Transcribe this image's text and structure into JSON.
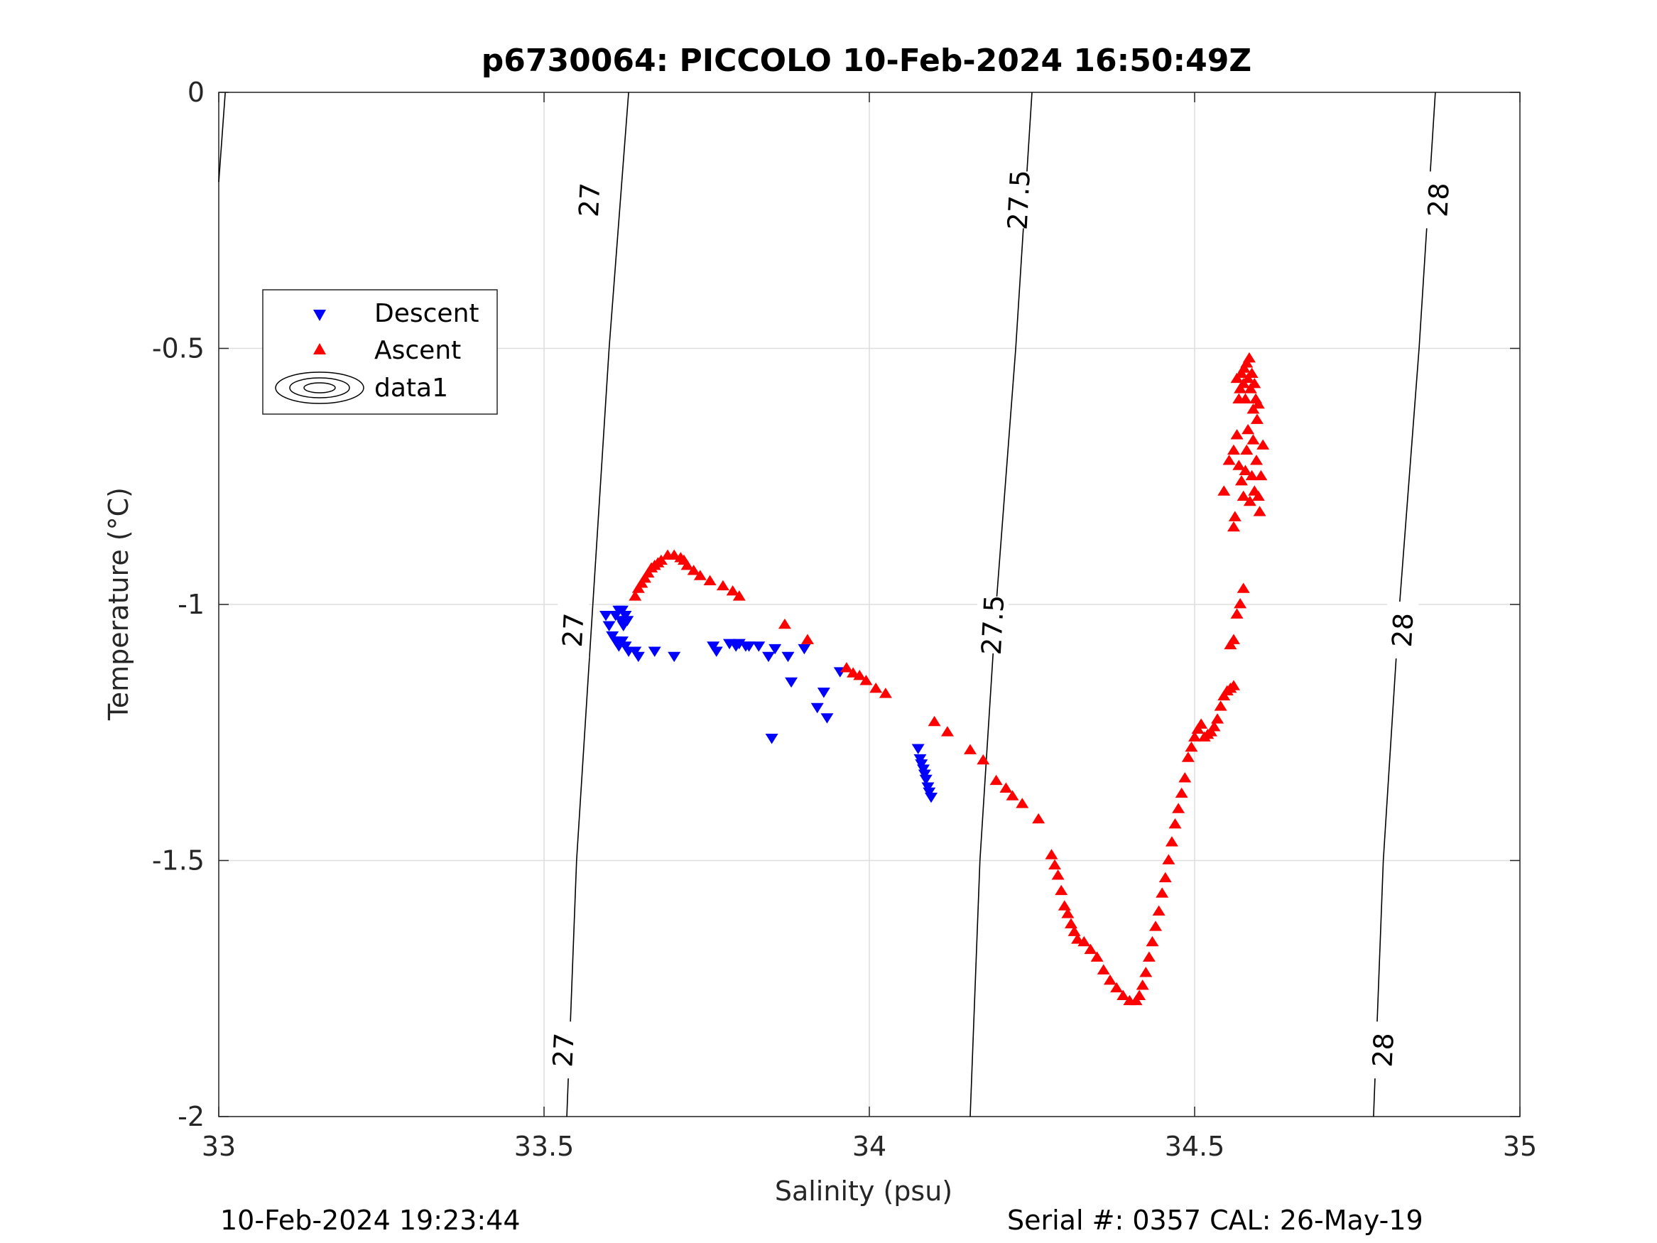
{
  "chart_data": {
    "type": "scatter",
    "title": "p6730064: PICCOLO 10-Feb-2024 16:50:49Z",
    "xlabel": "Salinity (psu)",
    "ylabel": "Temperature (°C)",
    "xlim": [
      33,
      35
    ],
    "ylim": [
      -2,
      0
    ],
    "x_ticks": [
      33,
      33.5,
      34,
      34.5,
      35
    ],
    "y_ticks": [
      0,
      -0.5,
      -1,
      -1.5,
      -2
    ],
    "x_tick_labels": [
      "33",
      "33.5",
      "34",
      "34.5",
      "35"
    ],
    "y_tick_labels": [
      "0",
      "-0.5",
      "-1",
      "-1.5",
      "-2"
    ],
    "grid": true,
    "legend_position": "upper-left",
    "series": [
      {
        "name": "Descent",
        "marker": "triangle-down",
        "color": "#0000ff",
        "points": [
          [
            33.595,
            -1.02
          ],
          [
            33.6,
            -1.04
          ],
          [
            33.605,
            -1.06
          ],
          [
            33.61,
            -1.02
          ],
          [
            33.615,
            -1.01
          ],
          [
            33.618,
            -1.03
          ],
          [
            33.62,
            -1.01
          ],
          [
            33.622,
            -1.04
          ],
          [
            33.625,
            -1.02
          ],
          [
            33.628,
            -1.03
          ],
          [
            33.61,
            -1.07
          ],
          [
            33.615,
            -1.08
          ],
          [
            33.62,
            -1.07
          ],
          [
            33.625,
            -1.08
          ],
          [
            33.63,
            -1.09
          ],
          [
            33.64,
            -1.09
          ],
          [
            33.645,
            -1.1
          ],
          [
            33.67,
            -1.09
          ],
          [
            33.7,
            -1.1
          ],
          [
            33.76,
            -1.08
          ],
          [
            33.765,
            -1.09
          ],
          [
            33.785,
            -1.075
          ],
          [
            33.795,
            -1.08
          ],
          [
            33.8,
            -1.075
          ],
          [
            33.81,
            -1.08
          ],
          [
            33.815,
            -1.08
          ],
          [
            33.83,
            -1.08
          ],
          [
            33.845,
            -1.1
          ],
          [
            33.855,
            -1.085
          ],
          [
            33.875,
            -1.1
          ],
          [
            33.88,
            -1.15
          ],
          [
            33.9,
            -1.085
          ],
          [
            33.92,
            -1.2
          ],
          [
            33.93,
            -1.17
          ],
          [
            33.935,
            -1.22
          ],
          [
            33.955,
            -1.13
          ],
          [
            33.85,
            -1.26
          ],
          [
            34.075,
            -1.28
          ],
          [
            34.078,
            -1.3
          ],
          [
            34.08,
            -1.31
          ],
          [
            34.083,
            -1.32
          ],
          [
            34.085,
            -1.33
          ],
          [
            34.087,
            -1.34
          ],
          [
            34.09,
            -1.355
          ],
          [
            34.092,
            -1.365
          ],
          [
            34.095,
            -1.375
          ]
        ]
      },
      {
        "name": "Ascent",
        "marker": "triangle-up",
        "color": "#ff0000",
        "points": [
          [
            33.64,
            -0.985
          ],
          [
            33.645,
            -0.97
          ],
          [
            33.65,
            -0.96
          ],
          [
            33.655,
            -0.95
          ],
          [
            33.66,
            -0.94
          ],
          [
            33.665,
            -0.93
          ],
          [
            33.67,
            -0.925
          ],
          [
            33.675,
            -0.92
          ],
          [
            33.68,
            -0.915
          ],
          [
            33.69,
            -0.905
          ],
          [
            33.7,
            -0.905
          ],
          [
            33.71,
            -0.91
          ],
          [
            33.715,
            -0.915
          ],
          [
            33.72,
            -0.925
          ],
          [
            33.73,
            -0.935
          ],
          [
            33.74,
            -0.945
          ],
          [
            33.755,
            -0.955
          ],
          [
            33.775,
            -0.965
          ],
          [
            33.79,
            -0.975
          ],
          [
            33.8,
            -0.985
          ],
          [
            33.87,
            -1.04
          ],
          [
            33.905,
            -1.07
          ],
          [
            33.965,
            -1.125
          ],
          [
            33.975,
            -1.135
          ],
          [
            33.985,
            -1.14
          ],
          [
            33.995,
            -1.15
          ],
          [
            34.01,
            -1.165
          ],
          [
            34.025,
            -1.175
          ],
          [
            34.1,
            -1.23
          ],
          [
            34.12,
            -1.25
          ],
          [
            34.155,
            -1.285
          ],
          [
            34.175,
            -1.305
          ],
          [
            34.195,
            -1.345
          ],
          [
            34.21,
            -1.36
          ],
          [
            34.22,
            -1.375
          ],
          [
            34.235,
            -1.39
          ],
          [
            34.26,
            -1.42
          ],
          [
            34.28,
            -1.49
          ],
          [
            34.285,
            -1.51
          ],
          [
            34.29,
            -1.53
          ],
          [
            34.295,
            -1.56
          ],
          [
            34.3,
            -1.59
          ],
          [
            34.305,
            -1.605
          ],
          [
            34.31,
            -1.625
          ],
          [
            34.315,
            -1.64
          ],
          [
            34.32,
            -1.655
          ],
          [
            34.33,
            -1.66
          ],
          [
            34.34,
            -1.675
          ],
          [
            34.35,
            -1.69
          ],
          [
            34.36,
            -1.715
          ],
          [
            34.37,
            -1.735
          ],
          [
            34.38,
            -1.75
          ],
          [
            34.39,
            -1.765
          ],
          [
            34.4,
            -1.775
          ],
          [
            34.41,
            -1.775
          ],
          [
            34.415,
            -1.765
          ],
          [
            34.42,
            -1.745
          ],
          [
            34.425,
            -1.72
          ],
          [
            34.43,
            -1.69
          ],
          [
            34.435,
            -1.66
          ],
          [
            34.44,
            -1.63
          ],
          [
            34.445,
            -1.6
          ],
          [
            34.45,
            -1.565
          ],
          [
            34.455,
            -1.535
          ],
          [
            34.46,
            -1.5
          ],
          [
            34.465,
            -1.465
          ],
          [
            34.47,
            -1.43
          ],
          [
            34.475,
            -1.4
          ],
          [
            34.48,
            -1.37
          ],
          [
            34.485,
            -1.34
          ],
          [
            34.49,
            -1.3
          ],
          [
            34.495,
            -1.28
          ],
          [
            34.5,
            -1.26
          ],
          [
            34.505,
            -1.245
          ],
          [
            34.51,
            -1.235
          ],
          [
            34.515,
            -1.26
          ],
          [
            34.52,
            -1.255
          ],
          [
            34.525,
            -1.25
          ],
          [
            34.53,
            -1.24
          ],
          [
            34.535,
            -1.225
          ],
          [
            34.54,
            -1.2
          ],
          [
            34.545,
            -1.18
          ],
          [
            34.55,
            -1.17
          ],
          [
            34.555,
            -1.165
          ],
          [
            34.56,
            -1.16
          ],
          [
            34.555,
            -1.08
          ],
          [
            34.56,
            -1.07
          ],
          [
            34.565,
            -1.02
          ],
          [
            34.57,
            -1.0
          ],
          [
            34.575,
            -0.97
          ],
          [
            34.56,
            -0.85
          ],
          [
            34.562,
            -0.83
          ],
          [
            34.545,
            -0.78
          ],
          [
            34.553,
            -0.72
          ],
          [
            34.56,
            -0.7
          ],
          [
            34.565,
            -0.67
          ],
          [
            34.568,
            -0.73
          ],
          [
            34.572,
            -0.76
          ],
          [
            34.575,
            -0.79
          ],
          [
            34.578,
            -0.74
          ],
          [
            34.58,
            -0.7
          ],
          [
            34.582,
            -0.66
          ],
          [
            34.585,
            -0.8
          ],
          [
            34.588,
            -0.75
          ],
          [
            34.59,
            -0.68
          ],
          [
            34.592,
            -0.78
          ],
          [
            34.595,
            -0.72
          ],
          [
            34.598,
            -0.79
          ],
          [
            34.6,
            -0.82
          ],
          [
            34.602,
            -0.75
          ],
          [
            34.605,
            -0.69
          ],
          [
            34.565,
            -0.56
          ],
          [
            34.568,
            -0.6
          ],
          [
            34.57,
            -0.58
          ],
          [
            34.572,
            -0.55
          ],
          [
            34.575,
            -0.57
          ],
          [
            34.576,
            -0.54
          ],
          [
            34.578,
            -0.6
          ],
          [
            34.58,
            -0.53
          ],
          [
            34.582,
            -0.56
          ],
          [
            34.584,
            -0.52
          ],
          [
            34.586,
            -0.58
          ],
          [
            34.588,
            -0.55
          ],
          [
            34.59,
            -0.62
          ],
          [
            34.592,
            -0.57
          ],
          [
            34.594,
            -0.6
          ],
          [
            34.596,
            -0.64
          ],
          [
            34.598,
            -0.61
          ]
        ]
      },
      {
        "name": "data1",
        "kind": "sigma-theta contours",
        "color": "#000000",
        "contours": [
          {
            "level": 27.0,
            "label": "27",
            "line": [
              [
                33.535,
                -2
              ],
              [
                33.55,
                -1.5
              ],
              [
                33.575,
                -1.0
              ],
              [
                33.6,
                -0.5
              ],
              [
                33.63,
                0
              ]
            ]
          },
          {
            "level": 27.5,
            "label": "27.5",
            "line": [
              [
                34.155,
                -2
              ],
              [
                34.17,
                -1.5
              ],
              [
                34.195,
                -1.0
              ],
              [
                34.225,
                -0.5
              ],
              [
                34.25,
                0
              ]
            ]
          },
          {
            "level": 28.0,
            "label": "28",
            "line": [
              [
                34.775,
                -2
              ],
              [
                34.79,
                -1.5
              ],
              [
                34.815,
                -1.0
              ],
              [
                34.845,
                -0.5
              ],
              [
                34.87,
                0
              ]
            ]
          },
          {
            "level": null,
            "label": "",
            "line": [
              [
                33.0,
                -0.175
              ],
              [
                33.01,
                0
              ]
            ]
          }
        ],
        "contour_label_positions": [
          {
            "label": "27",
            "x": 33.57,
            "y": -0.21
          },
          {
            "label": "27",
            "x": 33.545,
            "y": -1.05
          },
          {
            "label": "27",
            "x": 33.53,
            "y": -1.87
          },
          {
            "label": "27.5",
            "x": 34.23,
            "y": -0.21
          },
          {
            "label": "27.5",
            "x": 34.19,
            "y": -1.04
          },
          {
            "label": "28",
            "x": 34.875,
            "y": -0.21
          },
          {
            "label": "28",
            "x": 34.82,
            "y": -1.05
          },
          {
            "label": "28",
            "x": 34.79,
            "y": -1.87
          }
        ]
      }
    ]
  },
  "footer": {
    "timestamp": "10-Feb-2024 19:23:44",
    "serial": "Serial #: 0357  CAL: 26-May-19"
  }
}
